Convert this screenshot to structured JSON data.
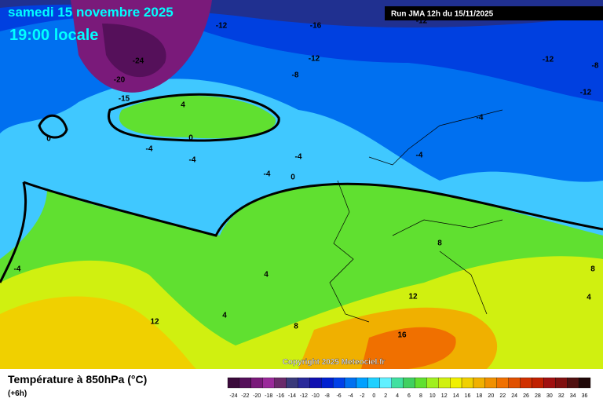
{
  "header": {
    "date": "samedi 15 novembre 2025",
    "time": "19:00 locale",
    "run": "Run JMA 12h du 15/11/2025"
  },
  "map": {
    "contour_labels": [
      "-12",
      "-16",
      "-12",
      "-24",
      "-20",
      "-15",
      "-12",
      "-8",
      "-12",
      "-8",
      "-12",
      "4",
      "-4",
      "0",
      "0",
      "-4",
      "-4",
      "-4",
      "-4",
      "-4",
      "0",
      "-4",
      "4",
      "8",
      "8",
      "4",
      "12",
      "4",
      "12",
      "8",
      "16"
    ],
    "copyright": "Copyright 2025 Meteociel.fr"
  },
  "legend": {
    "title": "Température à 850hPa (°C)",
    "step": "(+6h)",
    "labels": [
      "-24",
      "-22",
      "-20",
      "-18",
      "-16",
      "-14",
      "-12",
      "-10",
      "-8",
      "-6",
      "-4",
      "-2",
      "0",
      "2",
      "4",
      "6",
      "8",
      "10",
      "12",
      "14",
      "16",
      "18",
      "20",
      "22",
      "24",
      "26",
      "28",
      "30",
      "32",
      "34",
      "36"
    ],
    "colors": [
      "#3a0a3a",
      "#55105a",
      "#7a1a7a",
      "#9a2a9a",
      "#6a2a6a",
      "#3a3a7a",
      "#2a2a9a",
      "#1010b0",
      "#0020d0",
      "#0040e8",
      "#0070f0",
      "#00a0ff",
      "#20d0ff",
      "#60f0ff",
      "#40e0a0",
      "#40d060",
      "#60e030",
      "#a0f020",
      "#d0f010",
      "#f0f000",
      "#f0d000",
      "#f0b000",
      "#f09000",
      "#f07000",
      "#e05000",
      "#d03000",
      "#c02000",
      "#a01010",
      "#801010",
      "#501010",
      "#200808"
    ]
  }
}
